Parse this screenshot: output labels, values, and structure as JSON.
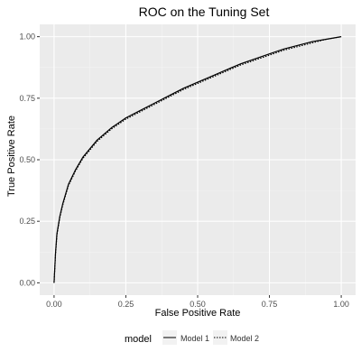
{
  "chart_data": {
    "type": "line",
    "title": "ROC on the Tuning Set",
    "xlabel": "False Positive Rate",
    "ylabel": "True Positive Rate",
    "xlim": [
      -0.05,
      1.05
    ],
    "ylim": [
      -0.05,
      1.05
    ],
    "x_ticks": [
      0.0,
      0.25,
      0.5,
      0.75,
      1.0
    ],
    "y_ticks": [
      0.0,
      0.25,
      0.5,
      0.75,
      1.0
    ],
    "x_tick_labels": [
      "0.00",
      "0.25",
      "0.50",
      "0.75",
      "1.00"
    ],
    "y_tick_labels": [
      "0.00",
      "0.25",
      "0.50",
      "0.75",
      "1.00"
    ],
    "grid": true,
    "legend": {
      "title": "model",
      "placement": "bottom",
      "entries": [
        "Model 1",
        "Model 2"
      ]
    },
    "series": [
      {
        "name": "Model 1",
        "line_style": "solid",
        "color": "#000000",
        "x": [
          0.0,
          0.005,
          0.01,
          0.02,
          0.03,
          0.05,
          0.075,
          0.1,
          0.15,
          0.2,
          0.25,
          0.3,
          0.35,
          0.4,
          0.45,
          0.5,
          0.55,
          0.6,
          0.65,
          0.7,
          0.75,
          0.8,
          0.85,
          0.9,
          0.95,
          1.0
        ],
        "y": [
          0.0,
          0.12,
          0.2,
          0.27,
          0.32,
          0.4,
          0.46,
          0.51,
          0.58,
          0.63,
          0.67,
          0.7,
          0.73,
          0.76,
          0.79,
          0.815,
          0.84,
          0.865,
          0.89,
          0.91,
          0.93,
          0.95,
          0.965,
          0.98,
          0.99,
          1.0
        ]
      },
      {
        "name": "Model 2",
        "line_style": "dotted",
        "color": "#000000",
        "x": [
          0.0,
          0.005,
          0.01,
          0.02,
          0.03,
          0.05,
          0.075,
          0.1,
          0.15,
          0.2,
          0.25,
          0.3,
          0.35,
          0.4,
          0.45,
          0.5,
          0.55,
          0.6,
          0.65,
          0.7,
          0.75,
          0.8,
          0.85,
          0.9,
          0.95,
          1.0
        ],
        "y": [
          0.0,
          0.115,
          0.195,
          0.265,
          0.315,
          0.395,
          0.455,
          0.505,
          0.575,
          0.625,
          0.665,
          0.695,
          0.725,
          0.755,
          0.785,
          0.81,
          0.835,
          0.86,
          0.885,
          0.905,
          0.925,
          0.945,
          0.96,
          0.975,
          0.99,
          1.0
        ]
      }
    ]
  },
  "colors": {
    "panel_background": "#ebebeb",
    "grid_major": "#ffffff",
    "grid_minor": "#f4f4f4",
    "text": "#333333",
    "axis_text": "#4d4d4d"
  }
}
